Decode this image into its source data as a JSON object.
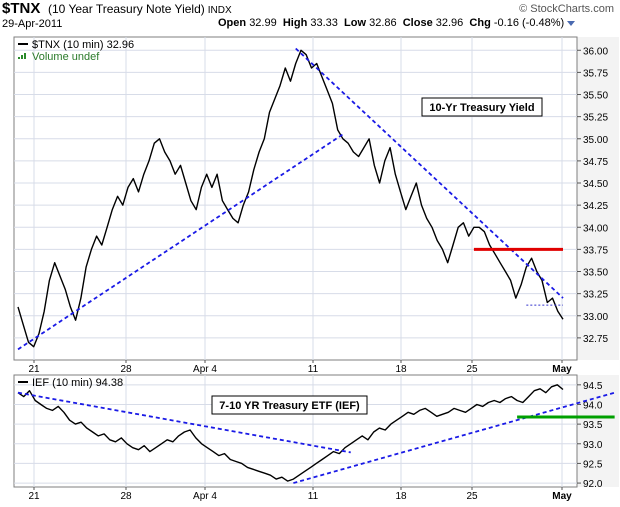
{
  "header": {
    "symbol": "$TNX",
    "name": "(10 Year Treasury Note Yield)",
    "exchange": "INDX",
    "date": "29-Apr-2011",
    "open_label": "Open",
    "open": "32.99",
    "high_label": "High",
    "high": "33.33",
    "low_label": "Low",
    "low": "32.86",
    "close_label": "Close",
    "close": "32.96",
    "chg_label": "Chg",
    "chg": "-0.16 (-0.48%)",
    "brand": "© StockCharts.com"
  },
  "chart_data": [
    {
      "type": "line",
      "legend": [
        "$TNX (10 min) 32.96",
        "Volume undef"
      ],
      "title": "",
      "annotation": "10-Yr Treasury Yield",
      "ylim": [
        32.5,
        36.15
      ],
      "yticks": [
        "36.00",
        "35.75",
        "35.50",
        "35.25",
        "35.00",
        "34.75",
        "34.50",
        "34.25",
        "34.00",
        "33.75",
        "33.50",
        "33.25",
        "33.00",
        "32.75"
      ],
      "x_ticks": [
        "21",
        "28",
        "Apr 4",
        "11",
        "18",
        "25",
        "May"
      ],
      "series": [
        {
          "values": [
            33.1,
            32.9,
            32.7,
            32.65,
            32.8,
            33.05,
            33.4,
            33.6,
            33.45,
            33.3,
            33.1,
            32.95,
            33.2,
            33.55,
            33.75,
            33.9,
            33.8,
            34.0,
            34.2,
            34.35,
            34.25,
            34.45,
            34.55,
            34.4,
            34.6,
            34.75,
            34.95,
            35.0,
            34.85,
            34.75,
            34.6,
            34.7,
            34.5,
            34.3,
            34.2,
            34.45,
            34.6,
            34.45,
            34.6,
            34.3,
            34.2,
            34.1,
            34.05,
            34.25,
            34.4,
            34.65,
            34.85,
            35.0,
            35.3,
            35.45,
            35.6,
            35.8,
            35.65,
            35.85,
            36.0,
            35.95,
            35.8,
            35.85,
            35.7,
            35.55,
            35.4,
            35.1,
            35.0,
            34.95,
            34.85,
            34.8,
            34.9,
            35.0,
            34.7,
            34.5,
            34.75,
            34.9,
            34.6,
            34.4,
            34.2,
            34.35,
            34.5,
            34.25,
            34.1,
            34.0,
            33.85,
            33.75,
            33.6,
            33.8,
            34.0,
            34.05,
            33.9,
            34.0,
            34.0,
            33.95,
            33.8,
            33.7,
            33.6,
            33.5,
            33.4,
            33.2,
            33.35,
            33.55,
            33.65,
            33.5,
            33.4,
            33.15,
            33.2,
            33.05,
            32.96
          ],
          "color": "#000000"
        }
      ],
      "trendlines": [
        {
          "from": [
            0,
            32.62
          ],
          "to": [
            62,
            35.05
          ],
          "color": "#1a1ae6"
        },
        {
          "from": [
            53,
            36.02
          ],
          "to": [
            104,
            33.2
          ],
          "color": "#1a1ae6"
        }
      ],
      "hlines": [
        {
          "value": 33.75,
          "from": 87,
          "to": 104,
          "color": "#e00000"
        },
        {
          "value": 33.12,
          "from": 97,
          "to": 104,
          "color": "#3333cc",
          "dashed": true
        }
      ]
    },
    {
      "type": "line",
      "legend": [
        "IEF (10 min) 94.38"
      ],
      "annotation": "7-10 YR Treasury ETF (IEF)",
      "ylim": [
        91.9,
        94.75
      ],
      "yticks": [
        "94.5",
        "94.0",
        "93.5",
        "93.0",
        "92.5",
        "92.0"
      ],
      "x_ticks": [
        "21",
        "28",
        "Apr 4",
        "11",
        "18",
        "25",
        "May"
      ],
      "series": [
        {
          "values": [
            94.3,
            94.2,
            94.35,
            94.1,
            94.0,
            93.9,
            93.85,
            93.95,
            93.8,
            93.6,
            93.5,
            93.55,
            93.4,
            93.3,
            93.2,
            93.25,
            93.1,
            93.05,
            93.15,
            93.0,
            92.9,
            92.85,
            92.95,
            92.8,
            92.9,
            93.0,
            93.1,
            93.05,
            93.2,
            93.3,
            93.35,
            93.15,
            93.0,
            92.9,
            92.8,
            92.7,
            92.75,
            92.6,
            92.55,
            92.5,
            92.4,
            92.35,
            92.3,
            92.25,
            92.2,
            92.1,
            92.15,
            92.05,
            92.1,
            92.2,
            92.3,
            92.4,
            92.5,
            92.6,
            92.7,
            92.8,
            92.75,
            92.9,
            93.0,
            93.1,
            93.2,
            93.1,
            93.3,
            93.4,
            93.35,
            93.5,
            93.6,
            93.7,
            93.8,
            93.75,
            93.85,
            93.9,
            93.8,
            93.7,
            93.75,
            93.8,
            93.9,
            93.85,
            93.8,
            93.9,
            94.0,
            93.95,
            94.05,
            94.1,
            94.05,
            94.15,
            94.2,
            94.1,
            94.05,
            94.2,
            94.35,
            94.4,
            94.3,
            94.45,
            94.5,
            94.38
          ],
          "color": "#000000"
        }
      ],
      "trendlines": [
        {
          "from": [
            0,
            94.3
          ],
          "to": [
            58,
            92.78
          ],
          "color": "#1a1ae6"
        },
        {
          "from": [
            48,
            92.0
          ],
          "to": [
            104,
            94.3
          ],
          "color": "#1a1ae6"
        }
      ],
      "hlines": [
        {
          "value": 93.68,
          "from": 87,
          "to": 104,
          "color": "#00a000"
        }
      ]
    }
  ],
  "icons": {
    "menu": "dropdown-arrow-icon",
    "volume": "volume-bars-icon"
  },
  "colors": {
    "panel_bg": "#ffffff",
    "frame": "#7f7f7f",
    "grid": "#d7dce8",
    "axis_bg": "#f3f3f3"
  }
}
